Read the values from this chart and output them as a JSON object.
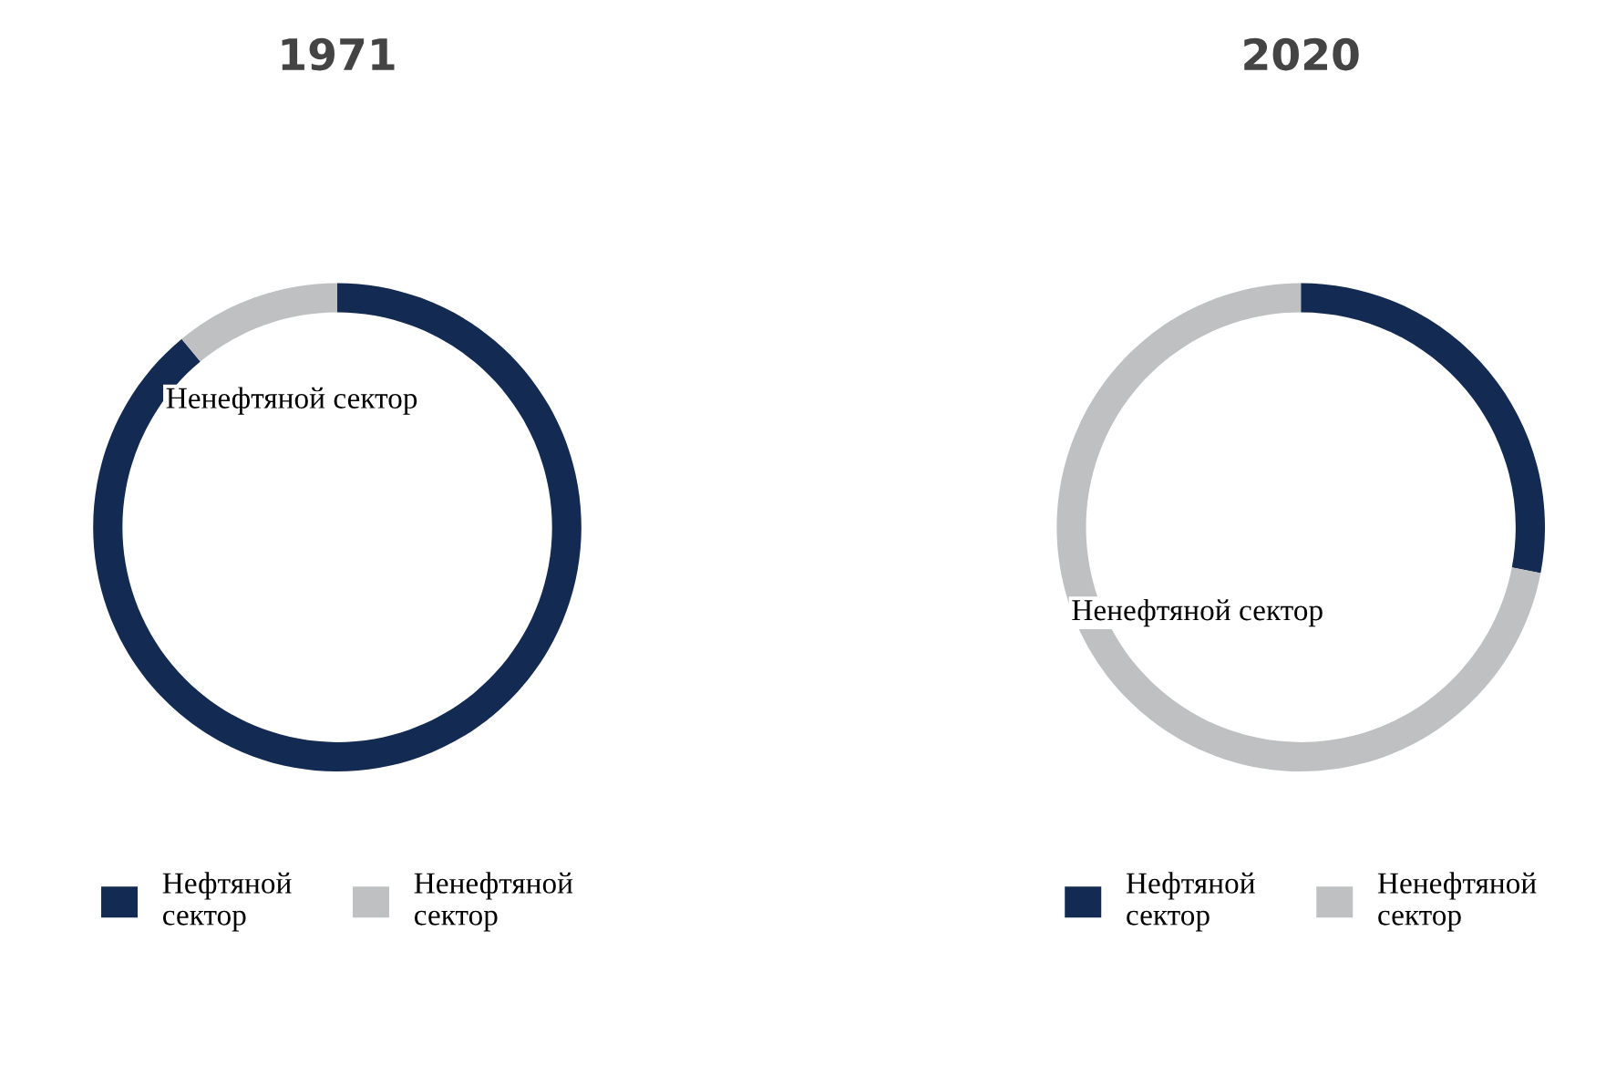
{
  "chart_data": [
    {
      "type": "donut",
      "title": "1971",
      "categories": [
        "Нефтяной сектор",
        "Ненефтяной сектор"
      ],
      "values": [
        89,
        11
      ],
      "colors": [
        "#132a52",
        "#bfc0c1"
      ],
      "legend": "bottom",
      "annotations": [
        "Ненефтяной сектор"
      ]
    },
    {
      "type": "donut",
      "title": "2020",
      "categories": [
        "Нефтяной сектор",
        "Ненефтяной сектор"
      ],
      "values": [
        28,
        72
      ],
      "colors": [
        "#132a52",
        "#bfc0c1"
      ],
      "legend": "bottom",
      "annotations": [
        "Ненефтяной сектор"
      ]
    }
  ]
}
